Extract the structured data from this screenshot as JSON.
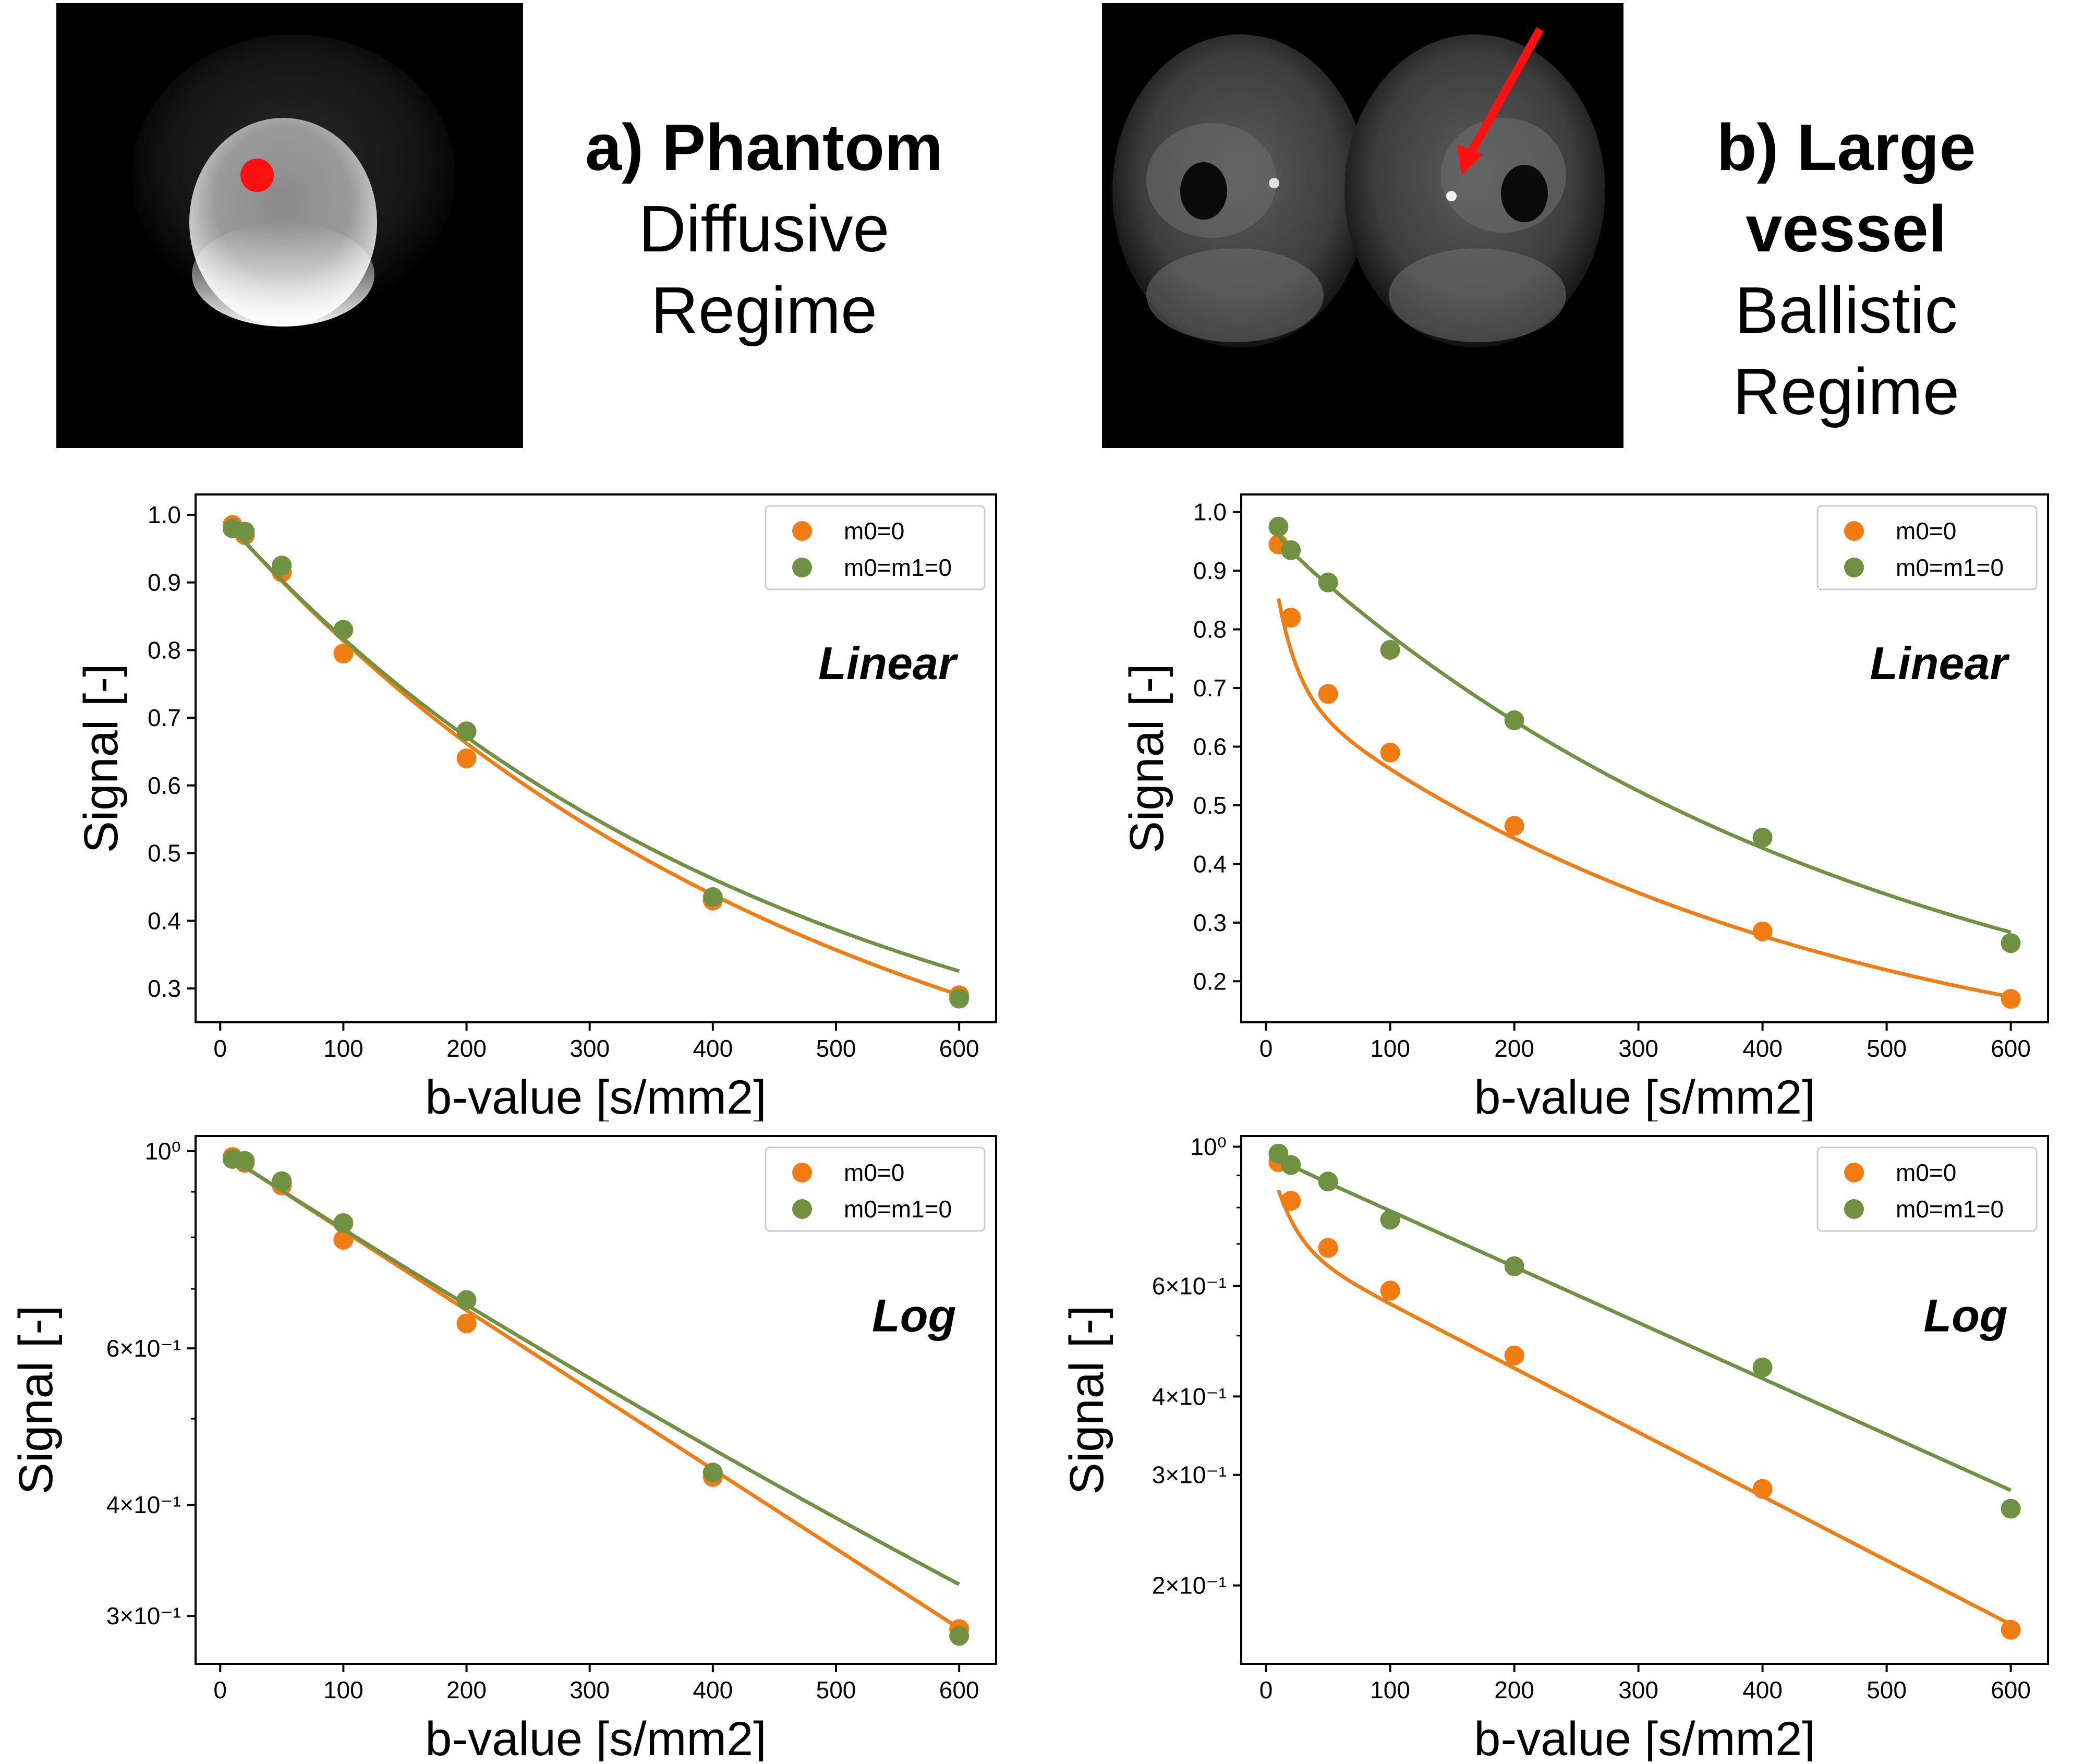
{
  "colors": {
    "m0": "#f07c12",
    "m0m1": "#6f9141",
    "marker_red": "#ff1010",
    "axis": "#000000"
  },
  "panel_a": {
    "label": "a) Phantom",
    "line2": "Diffusive",
    "line3": "Regime"
  },
  "panel_b": {
    "label_line1": "b) Large",
    "label_line2": "vessel",
    "line3": "Ballistic",
    "line4": "Regime"
  },
  "chart_data": [
    {
      "id": "a_linear",
      "type": "scatter",
      "scale": "linear",
      "annotation": "Linear",
      "xlabel": "b-value [s/mm2]",
      "ylabel": "Signal [-]",
      "xlim": [
        -20,
        630
      ],
      "ylim": [
        0.25,
        1.03
      ],
      "xticks": [
        0,
        100,
        200,
        300,
        400,
        500,
        600
      ],
      "yticks": [
        0.3,
        0.4,
        0.5,
        0.6,
        0.7,
        0.8,
        0.9,
        1.0
      ],
      "ytick_labels": [
        "0.3",
        "0.4",
        "0.5",
        "0.6",
        "0.7",
        "0.8",
        "0.9",
        "1.0"
      ],
      "legend": [
        "m0=0",
        "m0=m1=0"
      ],
      "series": [
        {
          "name": "m0=0",
          "color": "m0",
          "x": [
            10,
            20,
            50,
            100,
            200,
            400,
            600
          ],
          "y": [
            0.985,
            0.97,
            0.915,
            0.795,
            0.64,
            0.43,
            0.29
          ],
          "fit": {
            "type": "exp",
            "S0": 1.0,
            "D": 0.00206
          }
        },
        {
          "name": "m0=m1=0",
          "color": "m0m1",
          "x": [
            10,
            20,
            50,
            100,
            200,
            400,
            600
          ],
          "y": [
            0.98,
            0.975,
            0.925,
            0.83,
            0.68,
            0.435,
            0.285
          ],
          "fit": {
            "type": "exp",
            "S0": 1.0,
            "D": 0.00205,
            "curv": 3e-07
          }
        }
      ]
    },
    {
      "id": "b_linear",
      "type": "scatter",
      "scale": "linear",
      "annotation": "Linear",
      "xlabel": "b-value [s/mm2]",
      "ylabel": "Signal [-]",
      "xlim": [
        -20,
        630
      ],
      "ylim": [
        0.13,
        1.03
      ],
      "xticks": [
        0,
        100,
        200,
        300,
        400,
        500,
        600
      ],
      "yticks": [
        0.2,
        0.3,
        0.4,
        0.5,
        0.6,
        0.7,
        0.8,
        0.9,
        1.0
      ],
      "ytick_labels": [
        "0.2",
        "0.3",
        "0.4",
        "0.5",
        "0.6",
        "0.7",
        "0.8",
        "0.9",
        "1.0"
      ],
      "legend": [
        "m0=0",
        "m0=m1=0"
      ],
      "series": [
        {
          "name": "m0=0",
          "color": "m0",
          "x": [
            10,
            20,
            50,
            100,
            200,
            400,
            600
          ],
          "y": [
            0.945,
            0.82,
            0.69,
            0.59,
            0.465,
            0.285,
            0.17
          ],
          "fit": {
            "type": "biexp",
            "f": 0.29,
            "Dstar": 0.06,
            "D": 0.00235,
            "S0": 1.0
          }
        },
        {
          "name": "m0=m1=0",
          "color": "m0m1",
          "x": [
            10,
            20,
            50,
            100,
            200,
            400,
            600
          ],
          "y": [
            0.975,
            0.935,
            0.88,
            0.765,
            0.645,
            0.445,
            0.265
          ],
          "fit": {
            "type": "biexp",
            "f": 0.03,
            "Dstar": 0.1,
            "D": 0.00205,
            "S0": 1.0
          }
        }
      ]
    },
    {
      "id": "a_log",
      "type": "scatter",
      "scale": "log",
      "annotation": "Log",
      "xlabel": "b-value [s/mm2]",
      "ylabel": "Signal [-]",
      "xlim": [
        -20,
        630
      ],
      "ylim": [
        0.265,
        1.04
      ],
      "xticks": [
        0,
        100,
        200,
        300,
        400,
        500,
        600
      ],
      "yticks": [
        0.3,
        0.4,
        0.6,
        1.0
      ],
      "ytick_labels": [
        "3×10⁻¹",
        "4×10⁻¹",
        "6×10⁻¹",
        "10⁰"
      ],
      "minor_yticks": [
        0.5,
        0.7,
        0.8,
        0.9
      ],
      "legend": [
        "m0=0",
        "m0=m1=0"
      ],
      "series": [
        {
          "name": "m0=0",
          "color": "m0",
          "x": [
            10,
            20,
            50,
            100,
            200,
            400,
            600
          ],
          "y": [
            0.985,
            0.97,
            0.915,
            0.795,
            0.64,
            0.43,
            0.29
          ],
          "fit": {
            "type": "exp",
            "S0": 1.0,
            "D": 0.00206
          }
        },
        {
          "name": "m0=m1=0",
          "color": "m0m1",
          "x": [
            10,
            20,
            50,
            100,
            200,
            400,
            600
          ],
          "y": [
            0.98,
            0.975,
            0.925,
            0.83,
            0.68,
            0.435,
            0.285
          ],
          "fit": {
            "type": "exp",
            "S0": 1.0,
            "D": 0.00205,
            "curv": 3e-07
          }
        }
      ]
    },
    {
      "id": "b_log",
      "type": "scatter",
      "scale": "log",
      "annotation": "Log",
      "xlabel": "b-value [s/mm2]",
      "ylabel": "Signal [-]",
      "xlim": [
        -20,
        630
      ],
      "ylim": [
        0.15,
        1.04
      ],
      "xticks": [
        0,
        100,
        200,
        300,
        400,
        500,
        600
      ],
      "yticks": [
        0.2,
        0.3,
        0.4,
        0.6,
        1.0
      ],
      "ytick_labels": [
        "2×10⁻¹",
        "3×10⁻¹",
        "4×10⁻¹",
        "6×10⁻¹",
        "10⁰"
      ],
      "minor_yticks": [
        0.5,
        0.7,
        0.8,
        0.9
      ],
      "legend": [
        "m0=0",
        "m0=m1=0"
      ],
      "series": [
        {
          "name": "m0=0",
          "color": "m0",
          "x": [
            10,
            20,
            50,
            100,
            200,
            400,
            600
          ],
          "y": [
            0.945,
            0.82,
            0.69,
            0.59,
            0.465,
            0.285,
            0.17
          ],
          "fit": {
            "type": "biexp",
            "f": 0.29,
            "Dstar": 0.06,
            "D": 0.00235,
            "S0": 1.0
          }
        },
        {
          "name": "m0=m1=0",
          "color": "m0m1",
          "x": [
            10,
            20,
            50,
            100,
            200,
            400,
            600
          ],
          "y": [
            0.975,
            0.935,
            0.88,
            0.765,
            0.645,
            0.445,
            0.265
          ],
          "fit": {
            "type": "biexp",
            "f": 0.03,
            "Dstar": 0.1,
            "D": 0.00205,
            "S0": 1.0
          }
        }
      ]
    }
  ]
}
